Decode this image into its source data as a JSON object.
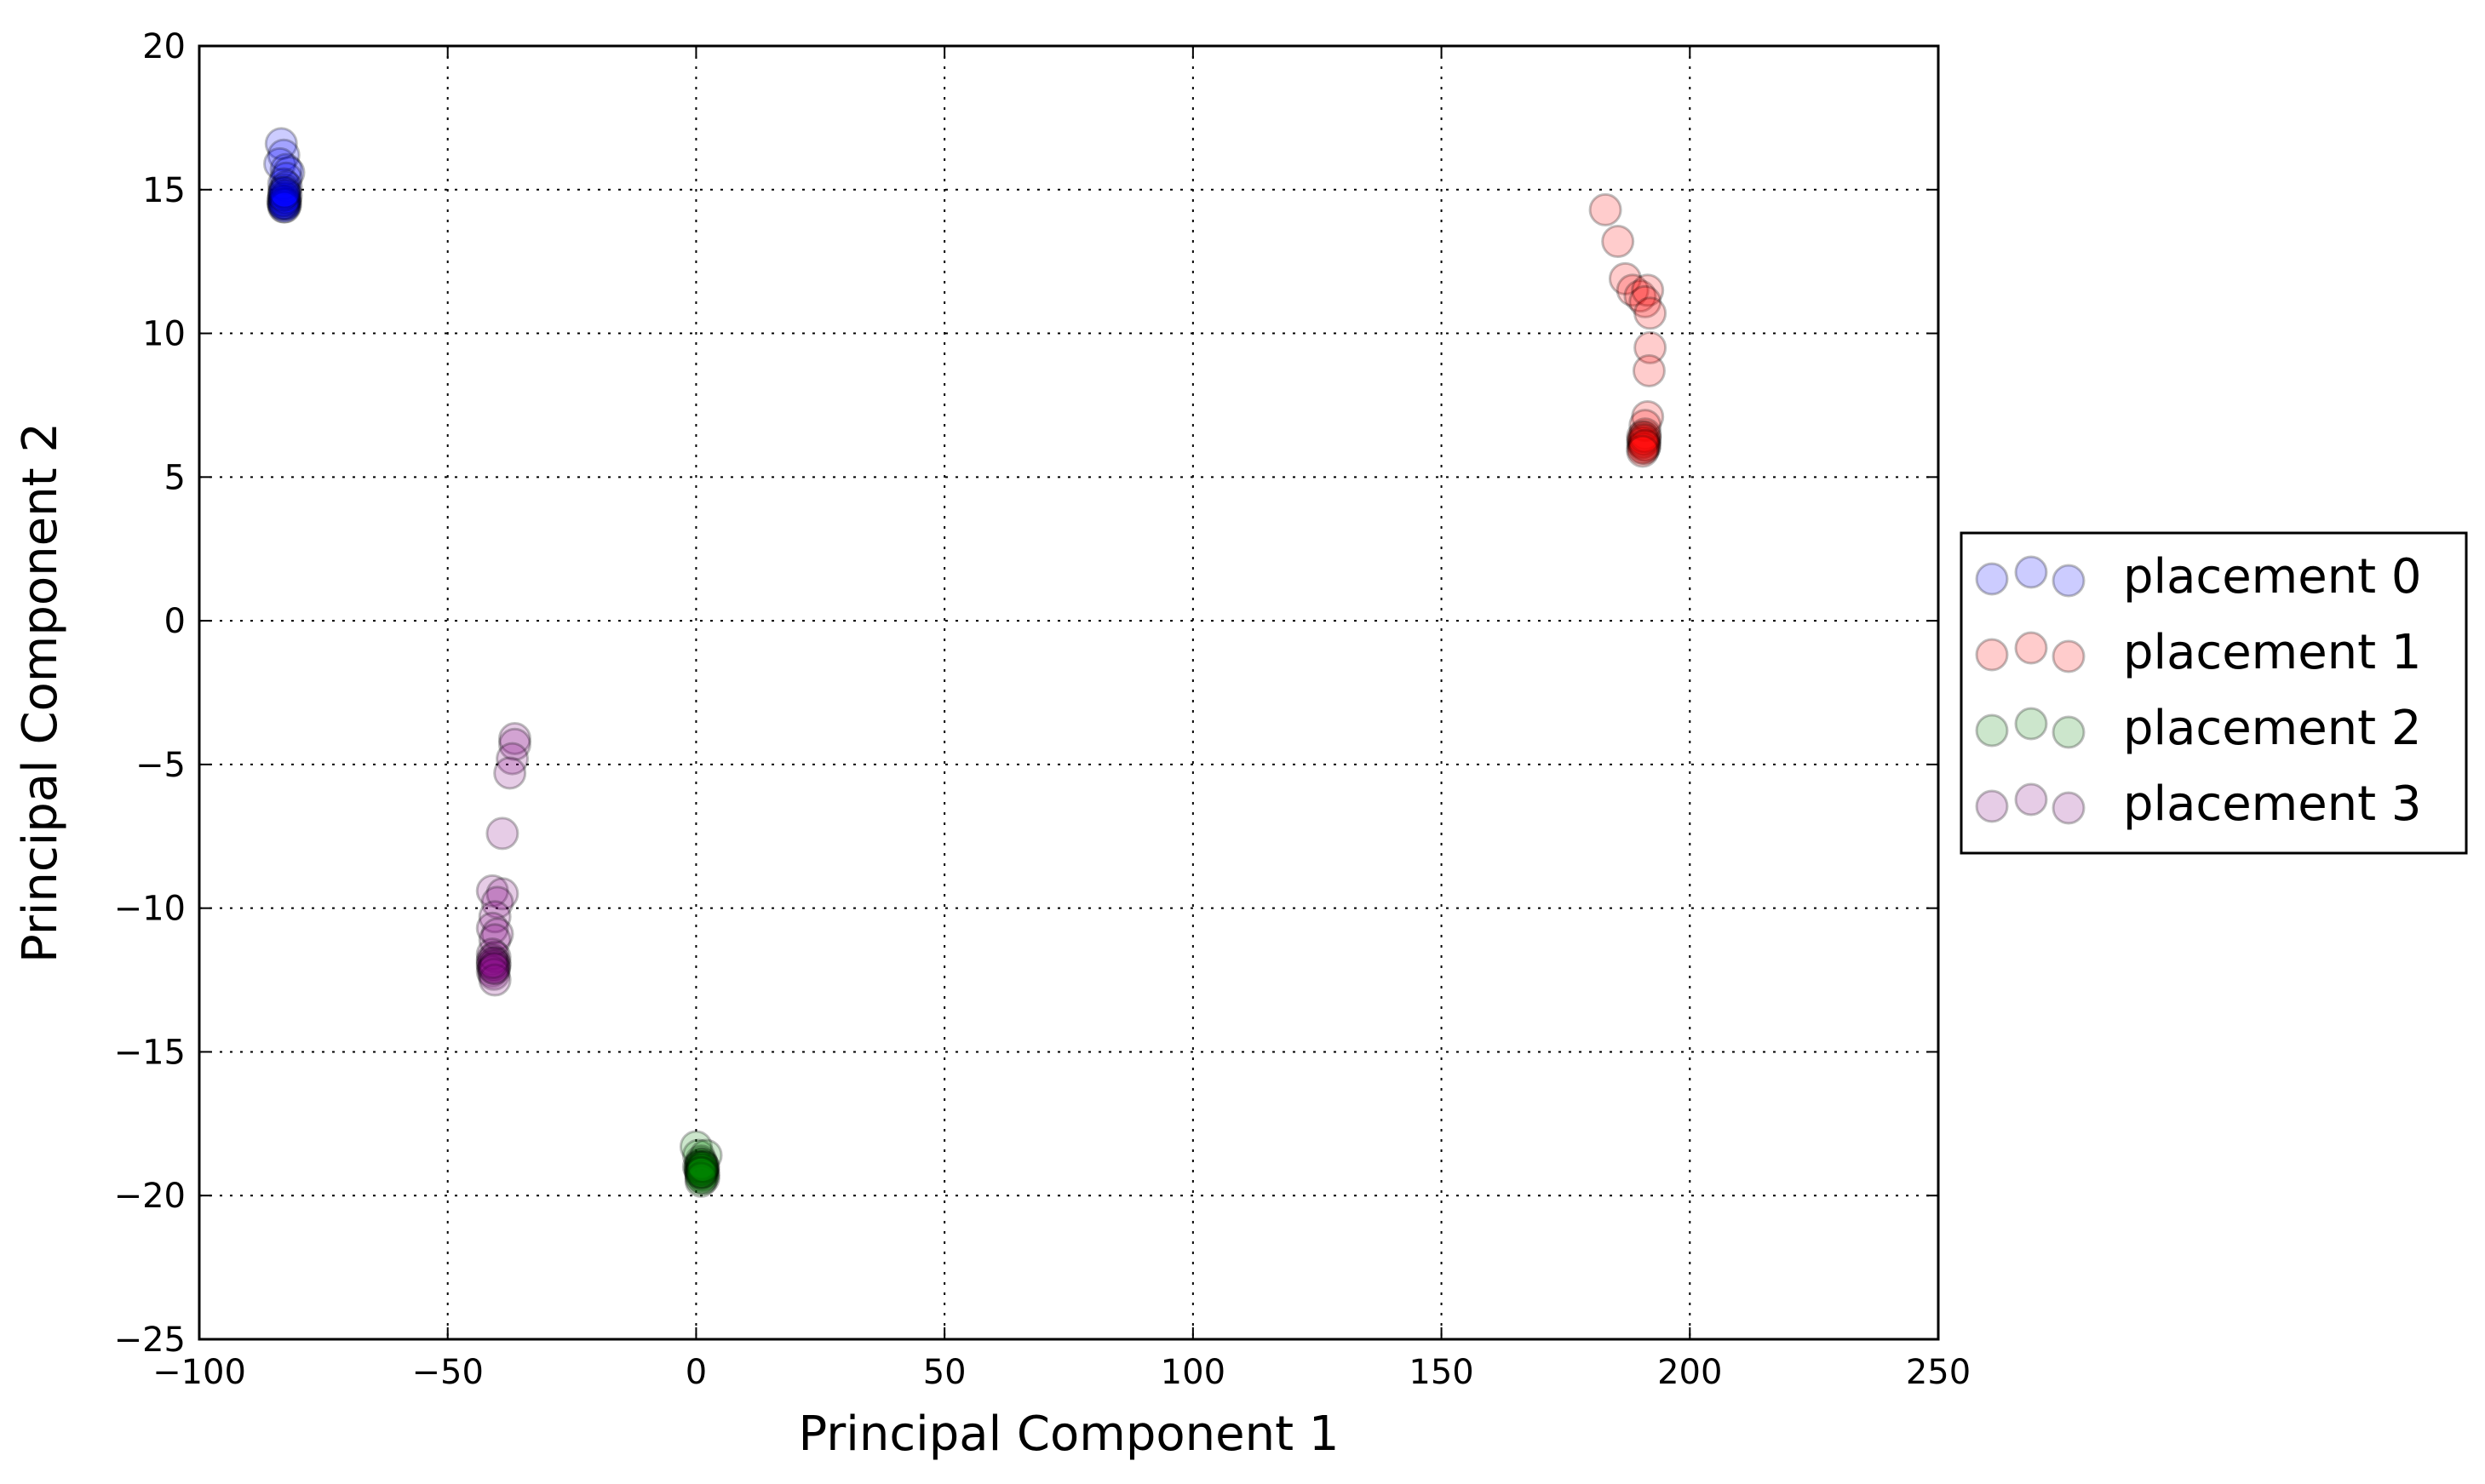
{
  "chart_data": {
    "type": "scatter",
    "xlabel": "Principal Component 1",
    "ylabel": "Principal Component 2",
    "xlim": [
      -100,
      250
    ],
    "ylim": [
      -25,
      20
    ],
    "xticks": [
      -100,
      -50,
      0,
      50,
      100,
      150,
      200,
      250
    ],
    "yticks": [
      -25,
      -20,
      -15,
      -10,
      -5,
      0,
      5,
      10,
      15,
      20
    ],
    "xtick_labels": [
      "−100",
      "−50",
      "0",
      "50",
      "100",
      "150",
      "200",
      "250"
    ],
    "ytick_labels": [
      "−25",
      "−20",
      "−15",
      "−10",
      "−5",
      "0",
      "5",
      "10",
      "15",
      "20"
    ],
    "grid": true,
    "legend_position": "outside-right",
    "marker_alpha": 0.2,
    "series": [
      {
        "name": "placement 0",
        "color": "#0000ff",
        "points": [
          [
            -83.5,
            16.6
          ],
          [
            -83.0,
            16.2
          ],
          [
            -83.8,
            15.9
          ],
          [
            -82.5,
            15.7
          ],
          [
            -82.0,
            15.6
          ],
          [
            -82.5,
            15.4
          ],
          [
            -83.0,
            15.2
          ],
          [
            -82.5,
            15.1
          ],
          [
            -82.8,
            15.0
          ],
          [
            -83.0,
            14.9
          ],
          [
            -82.5,
            14.8
          ],
          [
            -83.0,
            14.7
          ],
          [
            -82.7,
            14.6
          ],
          [
            -83.2,
            14.6
          ],
          [
            -82.8,
            14.5
          ],
          [
            -83.0,
            14.5
          ],
          [
            -82.6,
            14.5
          ],
          [
            -83.0,
            14.4
          ],
          [
            -82.8,
            14.4
          ],
          [
            -83.1,
            14.5
          ],
          [
            -82.9,
            14.6
          ],
          [
            -82.7,
            14.7
          ],
          [
            -83.0,
            14.8
          ],
          [
            -82.8,
            14.9
          ]
        ]
      },
      {
        "name": "placement 1",
        "color": "#ff0000",
        "points": [
          [
            183.0,
            14.3
          ],
          [
            185.5,
            13.2
          ],
          [
            187.0,
            11.9
          ],
          [
            188.5,
            11.5
          ],
          [
            190.0,
            11.3
          ],
          [
            191.5,
            11.5
          ],
          [
            191.0,
            11.1
          ],
          [
            192.0,
            10.7
          ],
          [
            192.0,
            9.5
          ],
          [
            191.8,
            8.7
          ],
          [
            191.5,
            7.1
          ],
          [
            191.0,
            6.8
          ],
          [
            191.0,
            6.5
          ],
          [
            190.5,
            6.4
          ],
          [
            191.0,
            6.3
          ],
          [
            190.5,
            6.2
          ],
          [
            191.0,
            6.1
          ],
          [
            190.8,
            6.0
          ],
          [
            190.5,
            6.0
          ],
          [
            190.8,
            6.2
          ],
          [
            191.0,
            6.4
          ],
          [
            190.6,
            6.3
          ],
          [
            190.8,
            6.1
          ],
          [
            190.5,
            5.9
          ]
        ]
      },
      {
        "name": "placement 2",
        "color": "#008000",
        "points": [
          [
            0.0,
            -18.3
          ],
          [
            0.5,
            -18.6
          ],
          [
            2.0,
            -18.6
          ],
          [
            1.0,
            -18.8
          ],
          [
            0.5,
            -19.0
          ],
          [
            1.5,
            -19.0
          ],
          [
            1.0,
            -19.1
          ],
          [
            1.5,
            -19.2
          ],
          [
            1.0,
            -19.3
          ],
          [
            0.8,
            -19.1
          ],
          [
            1.2,
            -18.9
          ],
          [
            1.5,
            -19.4
          ],
          [
            1.0,
            -19.5
          ],
          [
            1.2,
            -19.2
          ],
          [
            0.8,
            -19.0
          ],
          [
            1.3,
            -19.1
          ],
          [
            1.0,
            -18.9
          ],
          [
            1.5,
            -19.3
          ],
          [
            1.1,
            -19.0
          ],
          [
            0.9,
            -19.2
          ],
          [
            1.2,
            -19.1
          ],
          [
            1.0,
            -19.4
          ],
          [
            1.4,
            -19.0
          ],
          [
            1.1,
            -19.2
          ]
        ]
      },
      {
        "name": "placement 3",
        "color": "#800080",
        "points": [
          [
            -36.5,
            -4.1
          ],
          [
            -36.5,
            -4.3
          ],
          [
            -37.0,
            -4.8
          ],
          [
            -37.5,
            -5.3
          ],
          [
            -39.0,
            -7.4
          ],
          [
            -41.0,
            -9.4
          ],
          [
            -39.0,
            -9.5
          ],
          [
            -40.0,
            -9.8
          ],
          [
            -40.5,
            -10.3
          ],
          [
            -41.0,
            -10.7
          ],
          [
            -40.0,
            -10.9
          ],
          [
            -40.5,
            -11.1
          ],
          [
            -41.0,
            -11.6
          ],
          [
            -40.5,
            -11.7
          ],
          [
            -41.0,
            -11.8
          ],
          [
            -40.5,
            -11.9
          ],
          [
            -41.0,
            -12.0
          ],
          [
            -40.8,
            -12.1
          ],
          [
            -40.5,
            -12.0
          ],
          [
            -41.0,
            -12.2
          ],
          [
            -40.7,
            -12.3
          ],
          [
            -40.5,
            -12.5
          ],
          [
            -41.0,
            -11.9
          ],
          [
            -40.6,
            -12.1
          ]
        ]
      }
    ]
  }
}
